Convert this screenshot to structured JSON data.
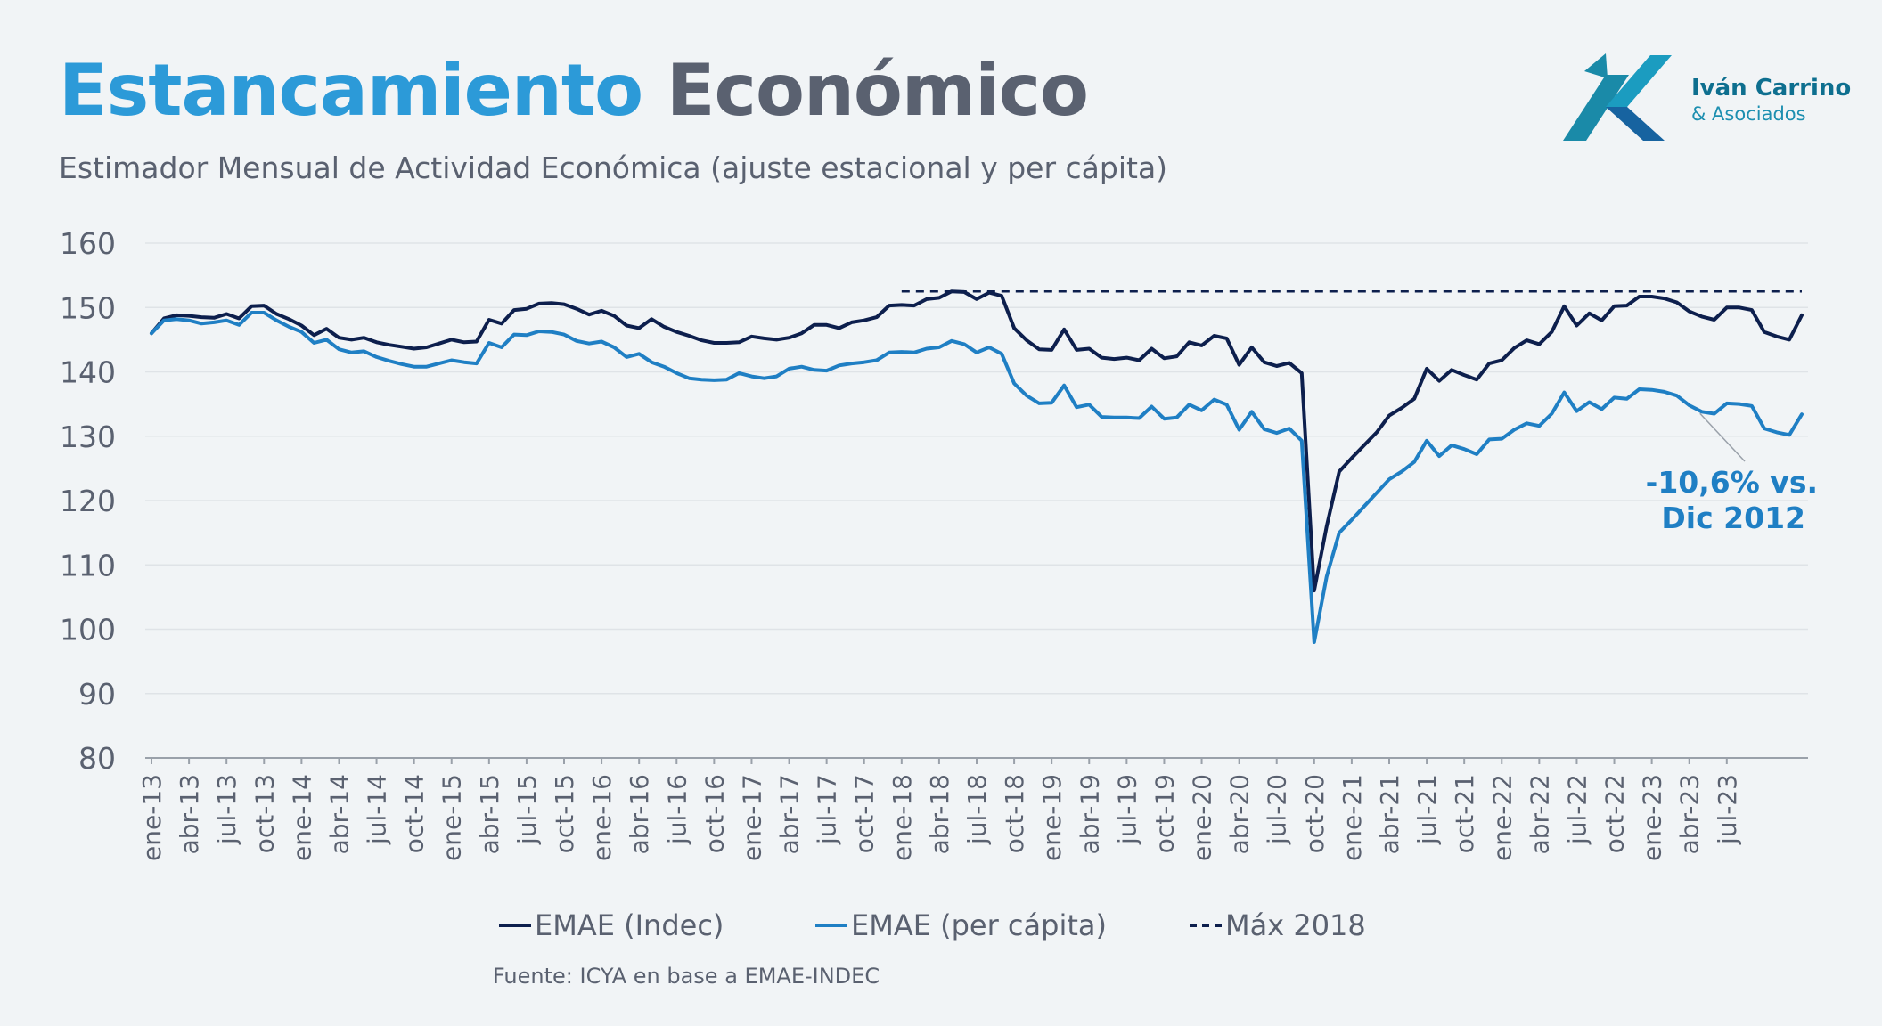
{
  "title": {
    "part1": "Estancamiento",
    "part2": "Económico"
  },
  "subtitle": "Estimador Mensual de Actividad Económica (ajuste estacional y per cápita)",
  "logo": {
    "name": "Iván Carrino",
    "sub": "& Asociados"
  },
  "source": "Fuente: ICYA en base a EMAE-INDEC",
  "colors": {
    "indec": "#0d1f4d",
    "percapita": "#1f7fc4",
    "max": "#0d1f4d",
    "title_accent": "#2c9ad8",
    "text": "#5a6170"
  },
  "chart_data": {
    "type": "line",
    "ylim": [
      80,
      160
    ],
    "yticks": [
      80,
      90,
      100,
      110,
      120,
      130,
      140,
      150,
      160
    ],
    "grid": true,
    "legend_position": "bottom",
    "xtick_labels": [
      "ene-13",
      "abr-13",
      "jul-13",
      "oct-13",
      "ene-14",
      "abr-14",
      "jul-14",
      "oct-14",
      "ene-15",
      "abr-15",
      "jul-15",
      "oct-15",
      "ene-16",
      "abr-16",
      "jul-16",
      "oct-16",
      "ene-17",
      "abr-17",
      "jul-17",
      "oct-17",
      "ene-18",
      "abr-18",
      "jul-18",
      "oct-18",
      "ene-19",
      "abr-19",
      "jul-19",
      "oct-19",
      "ene-20",
      "abr-20",
      "jul-20",
      "oct-20",
      "ene-21",
      "abr-21",
      "jul-21",
      "oct-21",
      "ene-22",
      "abr-22",
      "jul-22",
      "oct-22",
      "ene-23",
      "abr-23",
      "jul-23"
    ],
    "series": [
      {
        "name": "EMAE (Indec)",
        "style": "solid",
        "values": [
          146.0,
          148.3,
          148.8,
          148.7,
          148.5,
          148.4,
          149.0,
          148.3,
          150.2,
          150.3,
          149.0,
          148.2,
          147.2,
          145.7,
          146.7,
          145.3,
          145.0,
          145.3,
          144.6,
          144.2,
          143.9,
          143.6,
          143.8,
          144.4,
          145.0,
          144.6,
          144.7,
          148.1,
          147.5,
          149.6,
          149.8,
          150.6,
          150.7,
          150.5,
          149.8,
          148.9,
          149.5,
          148.7,
          147.2,
          146.8,
          148.2,
          147.0,
          146.2,
          145.6,
          144.9,
          144.5,
          144.5,
          144.6,
          145.5,
          145.2,
          145.0,
          145.3,
          146.0,
          147.3,
          147.3,
          146.8,
          147.7,
          148.0,
          148.5,
          150.3,
          150.4,
          150.3,
          151.3,
          151.5,
          152.5,
          152.4,
          151.3,
          152.3,
          151.8,
          146.8,
          144.9,
          143.5,
          143.4,
          146.6,
          143.4,
          143.6,
          142.2,
          142.0,
          142.2,
          141.8,
          143.6,
          142.1,
          142.4,
          144.6,
          144.1,
          145.6,
          145.2,
          141.1,
          143.8,
          141.5,
          140.9,
          141.4,
          139.8,
          106.0,
          116.0,
          124.5,
          126.6,
          128.6,
          130.6,
          133.2,
          134.4,
          135.8,
          140.5,
          138.6,
          140.3,
          139.5,
          138.8,
          141.3,
          141.8,
          143.7,
          144.9,
          144.3,
          146.2,
          150.2,
          147.2,
          149.1,
          148.0,
          150.2,
          150.3,
          151.7,
          151.7,
          151.4,
          150.8,
          149.4,
          148.6,
          148.1,
          150.0,
          150.0,
          149.6,
          146.2,
          145.5,
          145.0,
          148.8
        ]
      },
      {
        "name": "EMAE (per cápita)",
        "style": "solid",
        "values": [
          146.0,
          148.0,
          148.2,
          148.0,
          147.5,
          147.7,
          148.0,
          147.3,
          149.2,
          149.2,
          148.0,
          147.0,
          146.2,
          144.5,
          145.0,
          143.5,
          143.0,
          143.2,
          142.3,
          141.7,
          141.2,
          140.8,
          140.8,
          141.3,
          141.8,
          141.5,
          141.3,
          144.5,
          143.8,
          145.8,
          145.7,
          146.3,
          146.2,
          145.8,
          144.8,
          144.4,
          144.7,
          143.8,
          142.3,
          142.8,
          141.5,
          140.8,
          139.8,
          139.0,
          138.8,
          138.7,
          138.8,
          139.8,
          139.3,
          139.0,
          139.3,
          140.5,
          140.8,
          140.3,
          140.2,
          141.0,
          141.3,
          141.5,
          141.8,
          143.0,
          143.1,
          143.0,
          143.6,
          143.8,
          144.8,
          144.3,
          143.0,
          143.8,
          142.8,
          138.2,
          136.3,
          135.1,
          135.2,
          137.9,
          134.5,
          134.9,
          133.0,
          132.9,
          132.9,
          132.8,
          134.6,
          132.7,
          132.9,
          134.9,
          134.0,
          135.7,
          134.9,
          131.0,
          133.8,
          131.1,
          130.5,
          131.2,
          129.3,
          98.0,
          108.2,
          115.0,
          117.0,
          119.1,
          121.2,
          123.3,
          124.5,
          126.0,
          129.3,
          126.9,
          128.6,
          128.0,
          127.2,
          129.5,
          129.6,
          131.0,
          132.0,
          131.6,
          133.5,
          136.8,
          133.9,
          135.3,
          134.2,
          136.0,
          135.8,
          137.3,
          137.2,
          136.9,
          136.3,
          134.8,
          133.8,
          133.5,
          135.1,
          135.0,
          134.7,
          131.2,
          130.6,
          130.2,
          133.4
        ]
      },
      {
        "name": "Máx 2018",
        "style": "dashed",
        "value": 152.5,
        "start_label": "ene-18"
      }
    ],
    "annotation": {
      "text_line1": "-10,6% vs.",
      "text_line2": "Dic 2012",
      "target_label": "jul-23"
    }
  }
}
